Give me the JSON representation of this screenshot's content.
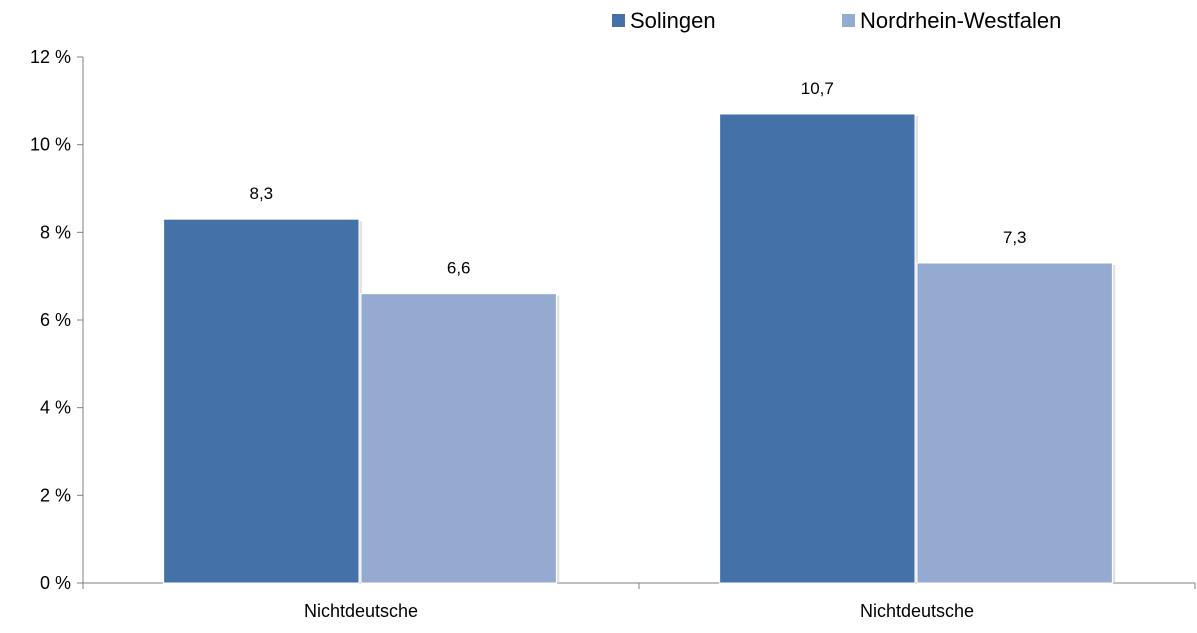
{
  "chart_data": {
    "type": "bar",
    "title": "",
    "xlabel": "",
    "ylabel": "",
    "categories": [
      "Nichtdeutsche",
      "Nichtdeutsche"
    ],
    "series": [
      {
        "name": "Solingen",
        "values": [
          8.3,
          10.7
        ],
        "labels": [
          "8,3",
          "10,7"
        ],
        "color": "#4472A8"
      },
      {
        "name": "Nordrhein-Westfalen",
        "values": [
          6.6,
          7.3
        ],
        "labels": [
          "6,6",
          "7,3"
        ],
        "color": "#95AAD1"
      }
    ],
    "ylim": [
      0,
      12
    ],
    "yticks": [
      0,
      2,
      4,
      6,
      8,
      10,
      12
    ],
    "ytick_labels": [
      "0 %",
      "2 %",
      "4 %",
      "6 %",
      "8 %",
      "10 %",
      "12 %"
    ],
    "grid": false,
    "legend_position": "top-right"
  }
}
